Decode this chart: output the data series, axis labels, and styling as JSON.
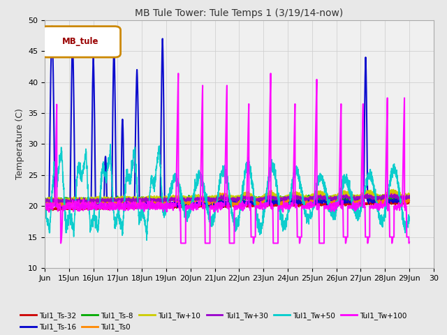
{
  "title": "MB Tule Tower: Tule Temps 1 (3/19/14-now)",
  "ylabel": "Temperature (C)",
  "xlabel": "",
  "ylim": [
    10,
    50
  ],
  "yticks": [
    10,
    15,
    20,
    25,
    30,
    35,
    40,
    45,
    50
  ],
  "xlim": [
    0,
    15
  ],
  "xtick_labels": [
    "Jun",
    "15Jun",
    "16Jun",
    "17Jun",
    "18Jun",
    "19Jun",
    "20Jun",
    "21Jun",
    "22Jun",
    "23Jun",
    "24Jun",
    "25Jun",
    "26Jun",
    "27Jun",
    "28Jun",
    "29Jun",
    "30"
  ],
  "legend_label": "MB_tule",
  "series_order": [
    "Tul1_Ts-32",
    "Tul1_Ts-16",
    "Tul1_Ts-8",
    "Tul1_Ts0",
    "Tul1_Tw+10",
    "Tul1_Tw+30",
    "Tul1_Tw+50",
    "Tul1_Tw+100"
  ],
  "series_colors": [
    "#cc0000",
    "#0000cc",
    "#00aa00",
    "#ff8800",
    "#cccc00",
    "#9900cc",
    "#00cccc",
    "#ff00ff"
  ],
  "series_lw": [
    1.2,
    1.5,
    1.2,
    1.2,
    1.2,
    1.2,
    1.2,
    1.5
  ],
  "background_color": "#e8e8e8",
  "plot_bg_color": "#f0f0f0",
  "legend_items_row1": [
    [
      "Tul1_Ts-32",
      "#cc0000"
    ],
    [
      "Tul1_Ts-16",
      "#0000cc"
    ],
    [
      "Tul1_Ts-8",
      "#00aa00"
    ],
    [
      "Tul1_Ts0",
      "#ff8800"
    ],
    [
      "Tul1_Tw+10",
      "#cccc00"
    ],
    [
      "Tul1_Tw+30",
      "#9900cc"
    ]
  ],
  "legend_items_row2": [
    [
      "Tul1_Tw+50",
      "#00cccc"
    ],
    [
      "Tul1_Tw+100",
      "#ff00ff"
    ]
  ]
}
